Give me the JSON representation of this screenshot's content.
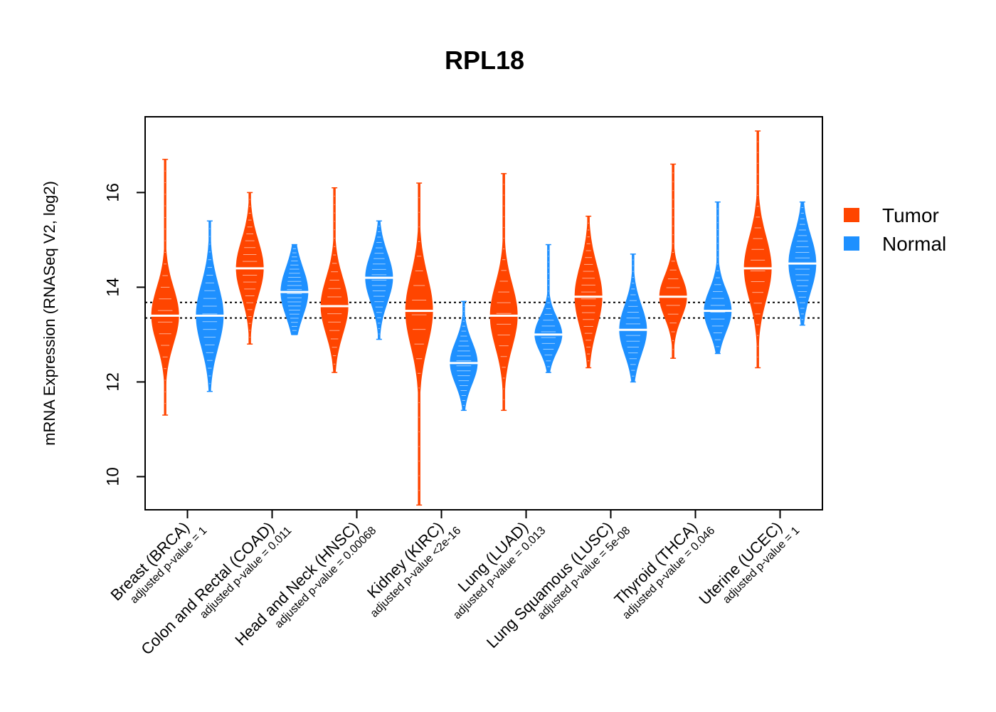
{
  "chart_data": {
    "type": "violin",
    "title": "RPL18",
    "xlabel": "",
    "ylabel": "mRNA Expression (RNASeq V2, log2)",
    "ylim": [
      9.3,
      17.6
    ],
    "yticks": [
      10,
      12,
      14,
      16
    ],
    "reference_lines": [
      13.35,
      13.68
    ],
    "legend": [
      {
        "name": "Tumor",
        "color": "#FF4500"
      },
      {
        "name": "Normal",
        "color": "#1E90FF"
      }
    ],
    "categories": [
      {
        "label": "Breast (BRCA)",
        "pvalue": "adjusted p-value = 1",
        "tumor": {
          "median": 13.4,
          "q1": 13.0,
          "q3": 13.8,
          "min": 11.3,
          "max": 16.7
        },
        "normal": {
          "median": 13.4,
          "q1": 12.9,
          "q3": 13.8,
          "min": 11.8,
          "max": 15.4
        }
      },
      {
        "label": "Colon and Rectal (COAD)",
        "pvalue": "adjusted p-value = 0.011",
        "tumor": {
          "median": 14.4,
          "q1": 14.0,
          "q3": 14.8,
          "min": 12.8,
          "max": 16.0
        },
        "normal": {
          "median": 13.9,
          "q1": 13.6,
          "q3": 14.3,
          "min": 13.0,
          "max": 14.9
        }
      },
      {
        "label": "Head and Neck (HNSC)",
        "pvalue": "adjusted p-value = 0.00068",
        "tumor": {
          "median": 13.6,
          "q1": 13.2,
          "q3": 14.0,
          "min": 12.2,
          "max": 16.1
        },
        "normal": {
          "median": 14.2,
          "q1": 13.8,
          "q3": 14.5,
          "min": 12.9,
          "max": 15.4
        }
      },
      {
        "label": "Kidney (KIRC)",
        "pvalue": "adjusted p-value <2e-16",
        "tumor": {
          "median": 13.5,
          "q1": 13.0,
          "q3": 14.0,
          "min": 9.4,
          "max": 16.2
        },
        "normal": {
          "median": 12.4,
          "q1": 12.1,
          "q3": 12.7,
          "min": 11.4,
          "max": 13.7
        }
      },
      {
        "label": "Lung (LUAD)",
        "pvalue": "adjusted p-value = 0.013",
        "tumor": {
          "median": 13.4,
          "q1": 13.0,
          "q3": 13.9,
          "min": 11.4,
          "max": 16.4
        },
        "normal": {
          "median": 13.0,
          "q1": 12.8,
          "q3": 13.3,
          "min": 12.2,
          "max": 14.9
        }
      },
      {
        "label": "Lung Squamous (LUSC)",
        "pvalue": "adjusted p-value = 5e-08",
        "tumor": {
          "median": 13.8,
          "q1": 13.3,
          "q3": 14.2,
          "min": 12.3,
          "max": 15.5
        },
        "normal": {
          "median": 13.1,
          "q1": 12.8,
          "q3": 13.5,
          "min": 12.0,
          "max": 14.7
        }
      },
      {
        "label": "Thyroid (THCA)",
        "pvalue": "adjusted p-value = 0.046",
        "tumor": {
          "median": 13.8,
          "q1": 13.5,
          "q3": 14.1,
          "min": 12.5,
          "max": 16.6
        },
        "normal": {
          "median": 13.5,
          "q1": 13.2,
          "q3": 13.8,
          "min": 12.6,
          "max": 15.8
        }
      },
      {
        "label": "Uterine (UCEC)",
        "pvalue": "adjusted p-value = 1",
        "tumor": {
          "median": 14.4,
          "q1": 13.9,
          "q3": 14.8,
          "min": 12.3,
          "max": 17.3
        },
        "normal": {
          "median": 14.5,
          "q1": 14.1,
          "q3": 14.9,
          "min": 13.2,
          "max": 15.8
        }
      }
    ]
  }
}
